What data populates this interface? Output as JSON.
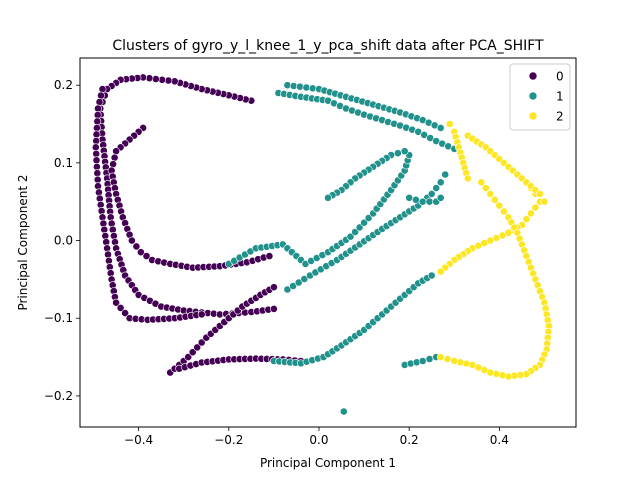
{
  "chart_data": {
    "type": "scatter",
    "title": "Clusters of gyro_y_l_knee_1_y_pca_shift data after PCA_SHIFT",
    "xlabel": "Principal Component 1",
    "ylabel": "Principal Component 2",
    "xlim": [
      -0.53,
      0.57
    ],
    "ylim": [
      -0.24,
      0.235
    ],
    "xticks": [
      -0.4,
      -0.2,
      0.0,
      0.2,
      0.4
    ],
    "xtick_labels": [
      "−0.4",
      "−0.2",
      "0.0",
      "0.2",
      "0.4"
    ],
    "yticks": [
      -0.2,
      -0.1,
      0.0,
      0.1,
      0.2
    ],
    "ytick_labels": [
      "−0.2",
      "−0.1",
      "0.0",
      "0.1",
      "0.2"
    ],
    "grid": false,
    "legend": {
      "placement": "top-right",
      "entries": [
        "0",
        "1",
        "2"
      ]
    },
    "colors": {
      "0": "#440154",
      "1": "#21918c",
      "2": "#fde725"
    },
    "series": [
      {
        "name": "0",
        "color": "#440154",
        "paths": [
          [
            [
              -0.15,
              0.18
            ],
            [
              -0.2,
              0.187
            ],
            [
              -0.26,
              0.195
            ],
            [
              -0.32,
              0.205
            ],
            [
              -0.39,
              0.21
            ],
            [
              -0.44,
              0.207
            ],
            [
              -0.47,
              0.195
            ],
            [
              -0.485,
              0.17
            ],
            [
              -0.48,
              0.13
            ],
            [
              -0.47,
              0.08
            ],
            [
              -0.462,
              0.03
            ],
            [
              -0.45,
              -0.01
            ],
            [
              -0.43,
              -0.045
            ],
            [
              -0.4,
              -0.07
            ],
            [
              -0.35,
              -0.085
            ],
            [
              -0.3,
              -0.09
            ],
            [
              -0.22,
              -0.095
            ],
            [
              -0.15,
              -0.092
            ],
            [
              -0.1,
              -0.088
            ]
          ],
          [
            [
              -0.39,
              0.145
            ],
            [
              -0.42,
              0.13
            ],
            [
              -0.45,
              0.115
            ],
            [
              -0.46,
              0.09
            ],
            [
              -0.45,
              0.06
            ],
            [
              -0.435,
              0.03
            ],
            [
              -0.415,
              0.0
            ],
            [
              -0.395,
              -0.015
            ],
            [
              -0.37,
              -0.025
            ],
            [
              -0.33,
              -0.03
            ],
            [
              -0.28,
              -0.035
            ],
            [
              -0.22,
              -0.033
            ],
            [
              -0.16,
              -0.028
            ],
            [
              -0.11,
              -0.02
            ]
          ],
          [
            [
              -0.48,
              0.195
            ],
            [
              -0.49,
              0.17
            ],
            [
              -0.495,
              0.12
            ],
            [
              -0.49,
              0.07
            ],
            [
              -0.48,
              0.03
            ],
            [
              -0.47,
              -0.01
            ],
            [
              -0.46,
              -0.05
            ],
            [
              -0.45,
              -0.08
            ],
            [
              -0.42,
              -0.1
            ],
            [
              -0.38,
              -0.102
            ],
            [
              -0.32,
              -0.1
            ],
            [
              -0.26,
              -0.095
            ]
          ],
          [
            [
              -0.33,
              -0.17
            ],
            [
              -0.29,
              -0.15
            ],
            [
              -0.25,
              -0.125
            ],
            [
              -0.21,
              -0.105
            ],
            [
              -0.17,
              -0.085
            ],
            [
              -0.13,
              -0.07
            ],
            [
              -0.1,
              -0.06
            ]
          ],
          [
            [
              -0.31,
              -0.165
            ],
            [
              -0.26,
              -0.157
            ],
            [
              -0.2,
              -0.153
            ],
            [
              -0.14,
              -0.152
            ],
            [
              -0.08,
              -0.153
            ],
            [
              -0.04,
              -0.155
            ]
          ]
        ]
      },
      {
        "name": "1",
        "color": "#21918c",
        "paths": [
          [
            [
              -0.09,
              0.19
            ],
            [
              -0.04,
              0.185
            ],
            [
              0.02,
              0.18
            ],
            [
              0.06,
              0.17
            ],
            [
              0.1,
              0.162
            ],
            [
              0.14,
              0.155
            ],
            [
              0.18,
              0.148
            ],
            [
              0.22,
              0.14
            ],
            [
              0.26,
              0.128
            ],
            [
              0.3,
              0.118
            ]
          ],
          [
            [
              -0.07,
              0.2
            ],
            [
              0.0,
              0.195
            ],
            [
              0.06,
              0.185
            ],
            [
              0.12,
              0.175
            ],
            [
              0.18,
              0.165
            ],
            [
              0.23,
              0.155
            ],
            [
              0.27,
              0.145
            ]
          ],
          [
            [
              -0.2,
              -0.03
            ],
            [
              -0.14,
              -0.01
            ],
            [
              -0.08,
              -0.005
            ],
            [
              -0.03,
              -0.03
            ],
            [
              0.02,
              -0.015
            ],
            [
              0.07,
              0.005
            ],
            [
              0.12,
              0.035
            ],
            [
              0.16,
              0.065
            ],
            [
              0.19,
              0.09
            ],
            [
              0.2,
              0.11
            ],
            [
              0.19,
              0.115
            ],
            [
              0.16,
              0.11
            ],
            [
              0.12,
              0.095
            ],
            [
              0.08,
              0.08
            ],
            [
              0.05,
              0.065
            ],
            [
              0.02,
              0.055
            ]
          ],
          [
            [
              -0.07,
              -0.063
            ],
            [
              -0.02,
              -0.045
            ],
            [
              0.04,
              -0.025
            ],
            [
              0.09,
              -0.005
            ],
            [
              0.14,
              0.015
            ],
            [
              0.18,
              0.03
            ],
            [
              0.22,
              0.045
            ],
            [
              0.25,
              0.06
            ],
            [
              0.27,
              0.075
            ],
            [
              0.28,
              0.085
            ]
          ],
          [
            [
              0.2,
              0.055
            ],
            [
              0.23,
              0.05
            ],
            [
              0.26,
              0.05
            ],
            [
              0.27,
              0.055
            ]
          ],
          [
            [
              -0.1,
              -0.155
            ],
            [
              -0.04,
              -0.158
            ],
            [
              0.01,
              -0.15
            ],
            [
              0.05,
              -0.135
            ],
            [
              0.1,
              -0.115
            ],
            [
              0.14,
              -0.095
            ],
            [
              0.18,
              -0.075
            ],
            [
              0.22,
              -0.055
            ],
            [
              0.25,
              -0.045
            ]
          ],
          [
            [
              0.19,
              -0.16
            ],
            [
              0.23,
              -0.155
            ],
            [
              0.26,
              -0.15
            ]
          ]
        ],
        "points": [
          [
            0.055,
            -0.22
          ]
        ]
      },
      {
        "name": "2",
        "color": "#fde725",
        "paths": [
          [
            [
              0.29,
              0.15
            ],
            [
              0.3,
              0.14
            ],
            [
              0.31,
              0.12
            ],
            [
              0.32,
              0.1
            ],
            [
              0.33,
              0.08
            ]
          ],
          [
            [
              0.33,
              0.135
            ],
            [
              0.37,
              0.12
            ],
            [
              0.4,
              0.105
            ],
            [
              0.43,
              0.09
            ],
            [
              0.46,
              0.075
            ],
            [
              0.48,
              0.06
            ],
            [
              0.49,
              0.05
            ],
            [
              0.47,
              0.035
            ],
            [
              0.45,
              0.02
            ],
            [
              0.42,
              0.01
            ],
            [
              0.38,
              0.0
            ],
            [
              0.34,
              -0.01
            ],
            [
              0.3,
              -0.025
            ],
            [
              0.27,
              -0.04
            ]
          ],
          [
            [
              0.36,
              0.075
            ],
            [
              0.38,
              0.06
            ],
            [
              0.4,
              0.045
            ],
            [
              0.42,
              0.03
            ],
            [
              0.44,
              0.01
            ],
            [
              0.46,
              -0.02
            ],
            [
              0.48,
              -0.05
            ],
            [
              0.5,
              -0.08
            ],
            [
              0.51,
              -0.11
            ],
            [
              0.505,
              -0.14
            ],
            [
              0.49,
              -0.16
            ],
            [
              0.46,
              -0.172
            ],
            [
              0.42,
              -0.175
            ],
            [
              0.38,
              -0.17
            ],
            [
              0.34,
              -0.16
            ],
            [
              0.3,
              -0.155
            ],
            [
              0.27,
              -0.15
            ]
          ],
          [
            [
              0.47,
              0.07
            ],
            [
              0.49,
              0.06
            ],
            [
              0.5,
              0.05
            ]
          ]
        ]
      }
    ]
  }
}
